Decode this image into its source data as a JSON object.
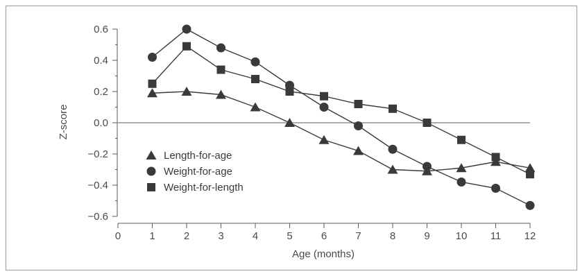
{
  "chart_data": {
    "type": "line",
    "xlabel": "Age (months)",
    "ylabel": "Z-score",
    "xlim": [
      0,
      12
    ],
    "ylim": [
      -0.6,
      0.6
    ],
    "x_ticks": [
      "0",
      "1",
      "2",
      "3",
      "4",
      "5",
      "6",
      "7",
      "8",
      "9",
      "10",
      "11",
      "12"
    ],
    "y_ticks": [
      "0.6",
      "0.4",
      "0.2",
      "0.0",
      "−0.2",
      "−0.4",
      "−0.6"
    ],
    "y_tick_values": [
      0.6,
      0.4,
      0.2,
      0.0,
      -0.2,
      -0.4,
      -0.6
    ],
    "reference_line": 0.0,
    "legend_position": "lower-left",
    "x": [
      1,
      2,
      3,
      4,
      5,
      6,
      7,
      8,
      9,
      10,
      11,
      12
    ],
    "series": [
      {
        "name": "Length-for-age",
        "marker": "triangle",
        "color": "#3a3a3a",
        "values": [
          0.19,
          0.2,
          0.18,
          0.1,
          0.0,
          -0.11,
          -0.18,
          -0.3,
          -0.31,
          -0.29,
          -0.25,
          -0.29
        ]
      },
      {
        "name": "Weight-for-age",
        "marker": "circle",
        "color": "#3a3a3a",
        "values": [
          0.42,
          0.6,
          0.48,
          0.39,
          0.24,
          0.1,
          -0.02,
          -0.17,
          -0.28,
          -0.38,
          -0.42,
          -0.53
        ]
      },
      {
        "name": "Weight-for-length",
        "marker": "square",
        "color": "#3a3a3a",
        "values": [
          0.25,
          0.49,
          0.34,
          0.28,
          0.2,
          0.17,
          0.12,
          0.09,
          0.0,
          -0.11,
          -0.22,
          -0.33
        ]
      }
    ]
  }
}
